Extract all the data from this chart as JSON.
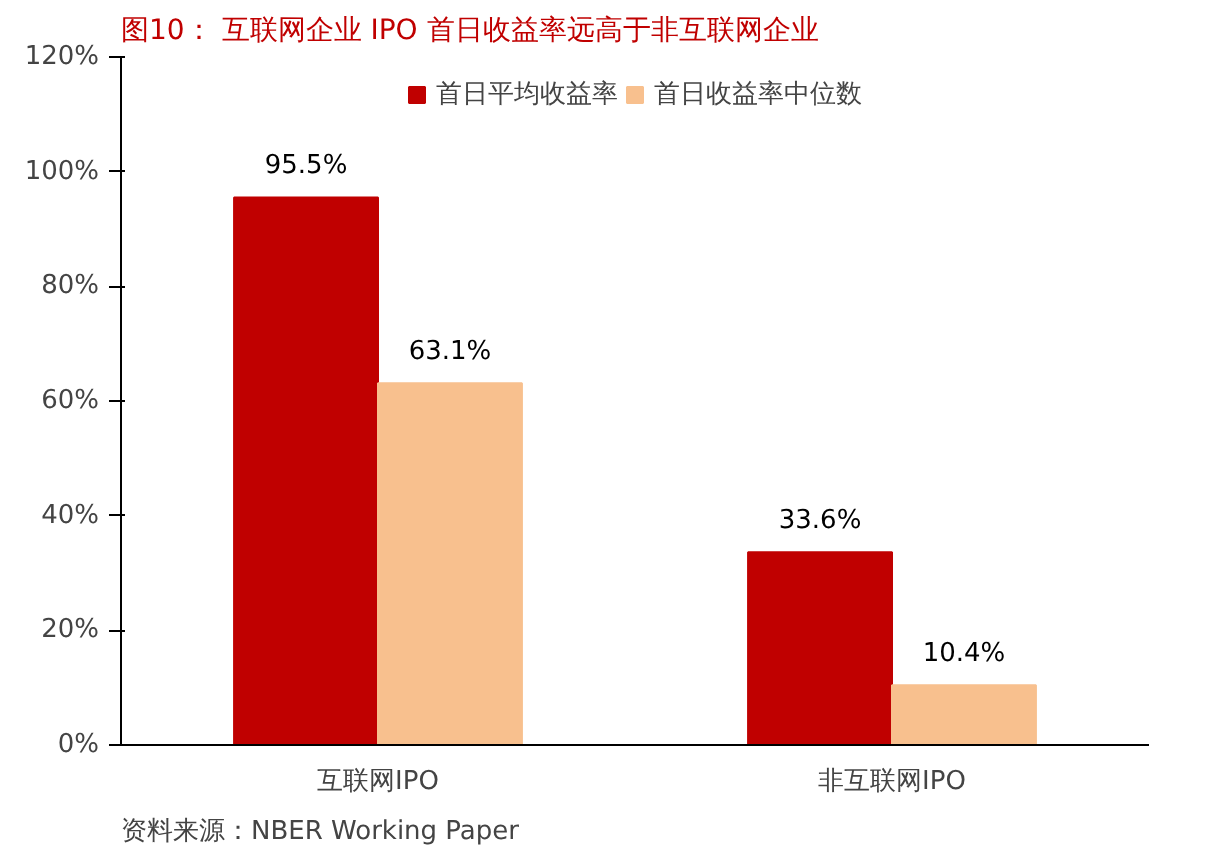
{
  "chart_data": {
    "type": "bar",
    "title": "图10： 互联网企业 IPO 首日收益率远高于非互联网企业",
    "categories": [
      "互联网IPO",
      "非互联网IPO"
    ],
    "series": [
      {
        "name": "首日平均收益率",
        "color": "#c00000",
        "values": [
          95.5,
          33.6
        ]
      },
      {
        "name": "首日收益率中位数",
        "color": "#f8c08e",
        "values": [
          63.1,
          10.4
        ]
      }
    ],
    "ylim": [
      0,
      120
    ],
    "yticks": [
      {
        "value": 0,
        "label": "0%"
      },
      {
        "value": 20,
        "label": "20%"
      },
      {
        "value": 40,
        "label": "40%"
      },
      {
        "value": 60,
        "label": "60%"
      },
      {
        "value": 80,
        "label": "80%"
      },
      {
        "value": 100,
        "label": "100%"
      },
      {
        "value": 120,
        "label": "120%"
      }
    ],
    "value_labels": [
      [
        "95.5%",
        "33.6%"
      ],
      [
        "63.1%",
        "10.4%"
      ]
    ],
    "grid": false,
    "legend": "top",
    "annotations": [
      "资料来源：NBER Working Paper"
    ]
  }
}
